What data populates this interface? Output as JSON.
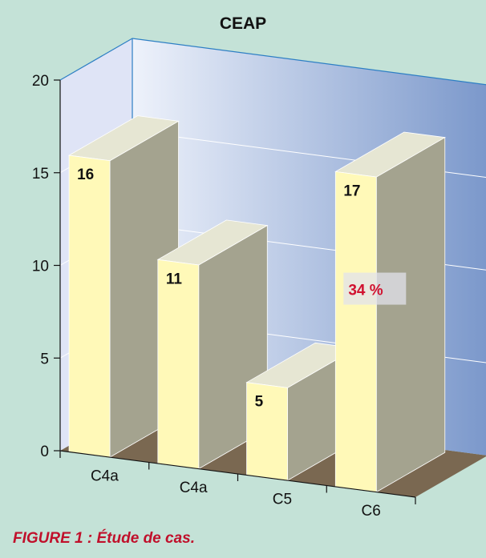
{
  "chart_data": {
    "type": "bar",
    "title": "CEAP",
    "categories": [
      "C4a",
      "C4a",
      "C5",
      "C6"
    ],
    "values": [
      16,
      11,
      5,
      17
    ],
    "data_labels": [
      "16",
      "11",
      "5",
      "17"
    ],
    "yticks": [
      "0",
      "5",
      "10",
      "15",
      "20"
    ],
    "ylim": [
      0,
      20
    ],
    "grid": true,
    "annotation": {
      "text": "34 %",
      "color": "#d1122f",
      "category": "C6"
    },
    "colors": {
      "bar_front": "#fff9b8",
      "bar_top": "#e6e6d3",
      "bar_side": "#a4a38f",
      "floor": "#7a6851",
      "wall_light": "#eef2fb",
      "wall_dark": "#7b98cb"
    }
  },
  "caption": "FIGURE 1 : Étude de cas."
}
